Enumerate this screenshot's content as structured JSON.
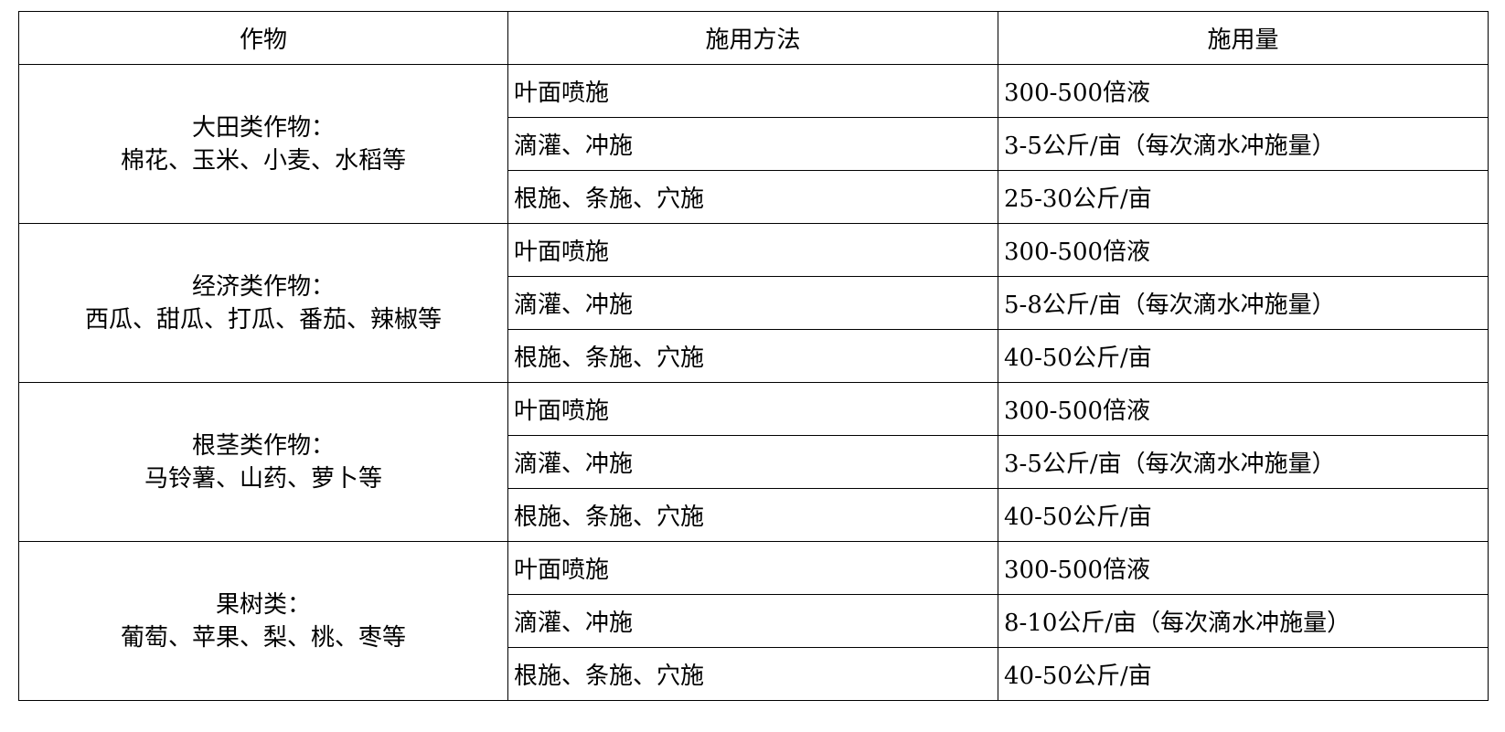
{
  "headers": [
    "作物",
    "施用方法",
    "施用量"
  ],
  "groups": [
    {
      "crop_line1": "大田类作物：",
      "crop_line2": "棉花、玉米、小麦、水稻等",
      "rows": [
        {
          "method": "叶面喷施",
          "amount": "300-500倍液"
        },
        {
          "method": "滴灌、冲施",
          "amount": "3-5公斤/亩（每次滴水冲施量）"
        },
        {
          "method": "根施、条施、穴施",
          "amount": "25-30公斤/亩"
        }
      ]
    },
    {
      "crop_line1": "经济类作物：",
      "crop_line2": "西瓜、甜瓜、打瓜、番茄、辣椒等",
      "rows": [
        {
          "method": "叶面喷施",
          "amount": "300-500倍液"
        },
        {
          "method": "滴灌、冲施",
          "amount": "5-8公斤/亩（每次滴水冲施量）"
        },
        {
          "method": "根施、条施、穴施",
          "amount": "40-50公斤/亩"
        }
      ]
    },
    {
      "crop_line1": "根茎类作物：",
      "crop_line2": "马铃薯、山药、萝卜等",
      "rows": [
        {
          "method": "叶面喷施",
          "amount": "300-500倍液"
        },
        {
          "method": "滴灌、冲施",
          "amount": "3-5公斤/亩（每次滴水冲施量）"
        },
        {
          "method": "根施、条施、穴施",
          "amount": "40-50公斤/亩"
        }
      ]
    },
    {
      "crop_line1": "果树类：",
      "crop_line2": "葡萄、苹果、梨、桃、枣等",
      "rows": [
        {
          "method": "叶面喷施",
          "amount": "300-500倍液"
        },
        {
          "method": "滴灌、冲施",
          "amount": "8-10公斤/亩（每次滴水冲施量）"
        },
        {
          "method": "根施、条施、穴施",
          "amount": "40-50公斤/亩"
        }
      ]
    }
  ]
}
